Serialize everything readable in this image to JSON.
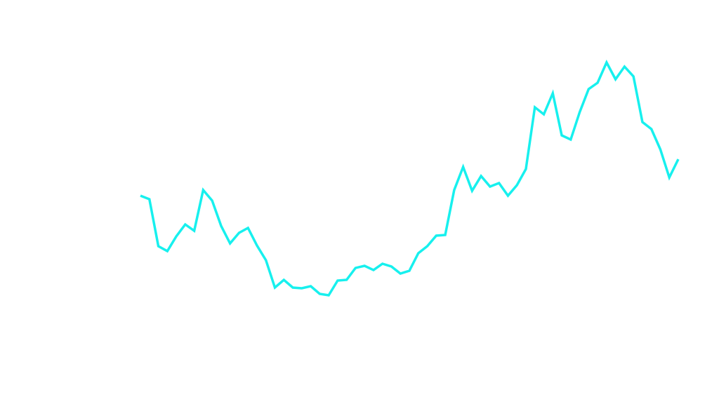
{
  "chart_data": {
    "type": "line",
    "color": "#17f0ee",
    "values": [
      297,
      292,
      225,
      218,
      239,
      256,
      247,
      305,
      290,
      254,
      229,
      244,
      251,
      226,
      205,
      166,
      177,
      166,
      165,
      168,
      157,
      155,
      176,
      177,
      194,
      197,
      191,
      200,
      196,
      186,
      190,
      215,
      225,
      240,
      241,
      305,
      338,
      304,
      325,
      310,
      315,
      297,
      312,
      335,
      423,
      413,
      443,
      383,
      377,
      416,
      449,
      458,
      487,
      463,
      481,
      467,
      402,
      392,
      363,
      323,
      349
    ]
  }
}
